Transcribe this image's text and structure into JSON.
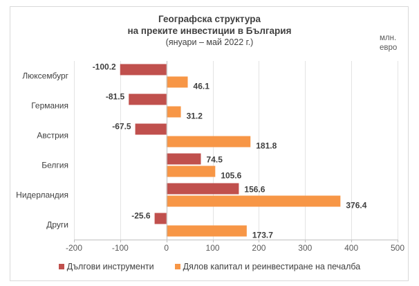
{
  "chart_data": {
    "type": "bar",
    "orientation": "horizontal",
    "title": "Географска структура",
    "subtitle": "на преките инвестиции в България",
    "period": "(януари – май 2022 г.)",
    "unit_label": [
      "млн.",
      "евро"
    ],
    "categories": [
      "Люксембург",
      "Германия",
      "Австрия",
      "Белгия",
      "Нидерландия",
      "Други"
    ],
    "series": [
      {
        "name": "Дългови инструменти",
        "color": "#c0504d",
        "values": [
          -100.2,
          -81.5,
          -67.5,
          74.5,
          156.6,
          -25.6
        ],
        "labels": [
          "-100.2",
          "-81.5",
          "-67.5",
          "74.5",
          "156.6",
          "-25.6"
        ]
      },
      {
        "name": "Дялов капитал и реинвестиране на печалба",
        "color": "#f79646",
        "values": [
          46.1,
          31.2,
          181.8,
          105.6,
          376.4,
          173.7
        ],
        "labels": [
          "46.1",
          "31.2",
          "181.8",
          "105.6",
          "376.4",
          "173.7"
        ]
      }
    ],
    "xlim": [
      -200,
      500
    ],
    "xticks": [
      -200,
      -100,
      0,
      100,
      200,
      300,
      400,
      500
    ],
    "xtick_labels": [
      "-200",
      "-100",
      "0",
      "100",
      "200",
      "300",
      "400",
      "500"
    ],
    "grid": true,
    "legend_position": "bottom"
  }
}
